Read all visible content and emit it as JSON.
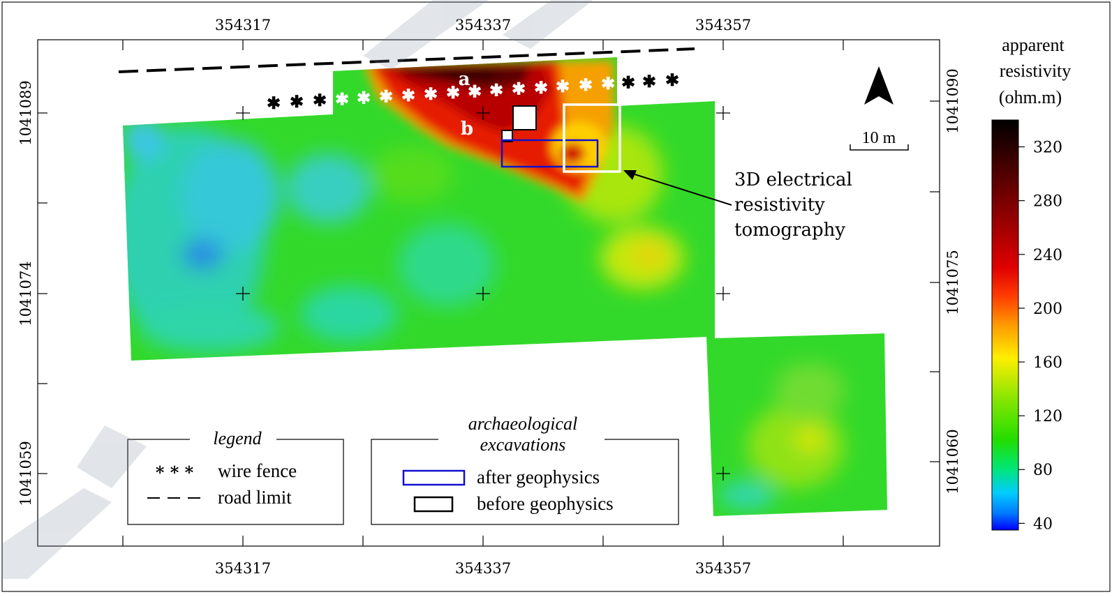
{
  "map": {
    "x_axis_ticks": [
      "354317",
      "354337",
      "354357"
    ],
    "y_left_ticks": [
      "1041089",
      "1041074",
      "1041059"
    ],
    "y_right_ticks": [
      "1041090",
      "1041075",
      "1041060"
    ],
    "zone_labels": {
      "a": "a",
      "b": "b"
    },
    "north_label": "N",
    "scale_label": "10 m",
    "annotation": [
      "3D electrical",
      "resistivity",
      "tomography"
    ]
  },
  "colorbar": {
    "title": [
      "apparent",
      "resistivity",
      "(ohm.m)"
    ],
    "ticks": [
      "320",
      "280",
      "240",
      "200",
      "160",
      "120",
      "80",
      "40"
    ],
    "range": [
      35,
      340
    ],
    "stops": [
      "#0000ff",
      "#00aaff",
      "#00dddd",
      "#00ee44",
      "#33dd00",
      "#99ee00",
      "#ffee00",
      "#ff9900",
      "#ff3300",
      "#cc0000",
      "#880000",
      "#330000",
      "#000000"
    ]
  },
  "legend": {
    "title": "legend",
    "items": [
      {
        "symbol": "* * *",
        "label": "wire fence"
      },
      {
        "symbol": "dashed",
        "label": "road limit"
      }
    ]
  },
  "excavations_legend": {
    "title": [
      "archaeological",
      "excavations"
    ],
    "items": [
      {
        "color": "#1010cc",
        "label": "after geophysics"
      },
      {
        "color": "#000000",
        "label": "before geophysics"
      }
    ]
  }
}
